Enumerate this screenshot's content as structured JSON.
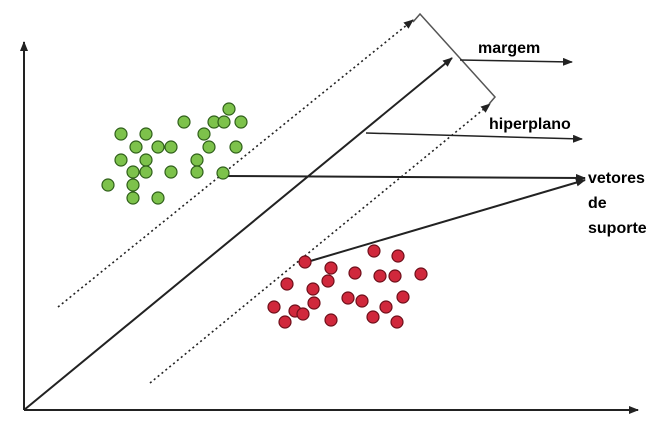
{
  "labels": {
    "margin": "margem",
    "hyperplane": "hiperplano",
    "support_vectors_line1": "vetores",
    "support_vectors_line2": "de",
    "support_vectors_line3": "suporte"
  },
  "colors": {
    "green_fill": "#7dc24b",
    "green_stroke": "#2f5f1a",
    "red_fill": "#d0283c",
    "red_stroke": "#6e0f1a",
    "ink": "#222222"
  }
}
